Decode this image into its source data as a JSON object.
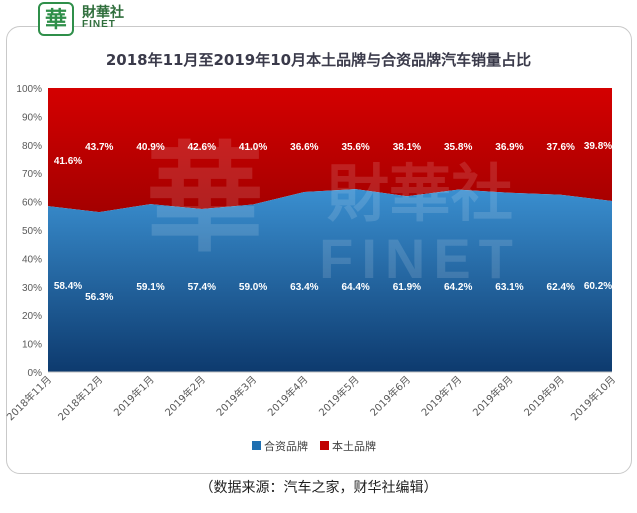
{
  "brand": {
    "mark": "華",
    "name_cn": "財華社",
    "name_en": "FINET",
    "watermark_cn": "財華社",
    "watermark_en": "FINET"
  },
  "colors": {
    "foreign": "#1f6fb0",
    "domestic": "#c00000",
    "label_text": "#ffffff"
  },
  "chart_data": {
    "type": "area",
    "stacked": true,
    "title": "2018年11月至2019年10月本土品牌与合资品牌汽车销量占比",
    "categories": [
      "2018年11月",
      "2018年12月",
      "2019年1月",
      "2019年2月",
      "2019年3月",
      "2019年4月",
      "2019年5月",
      "2019年6月",
      "2019年7月",
      "2019年8月",
      "2019年9月",
      "2019年10月"
    ],
    "series": [
      {
        "name": "合资品牌",
        "values": [
          58.4,
          56.3,
          59.1,
          57.4,
          59.0,
          63.4,
          64.4,
          61.9,
          64.2,
          63.1,
          62.4,
          60.2
        ],
        "labels": [
          "58.4%",
          "56.3%",
          "59.1%",
          "57.4%",
          "59.0%",
          "63.4%",
          "64.4%",
          "61.9%",
          "64.2%",
          "63.1%",
          "62.4%",
          "60.2%"
        ]
      },
      {
        "name": "本土品牌",
        "values": [
          41.6,
          43.7,
          40.9,
          42.6,
          41.0,
          36.6,
          35.6,
          38.1,
          35.8,
          36.9,
          37.6,
          39.8
        ],
        "labels": [
          "41.6%",
          "43.7%",
          "40.9%",
          "42.6%",
          "41.0%",
          "36.6%",
          "35.6%",
          "38.1%",
          "35.8%",
          "36.9%",
          "37.6%",
          "39.8%"
        ]
      }
    ],
    "ylim": [
      0,
      100
    ],
    "yticks": [
      "0%",
      "10%",
      "20%",
      "30%",
      "40%",
      "50%",
      "60%",
      "70%",
      "80%",
      "90%",
      "100%"
    ],
    "legend_position": "bottom"
  },
  "source_note": "（数据来源：汽车之家，财华社编辑）"
}
